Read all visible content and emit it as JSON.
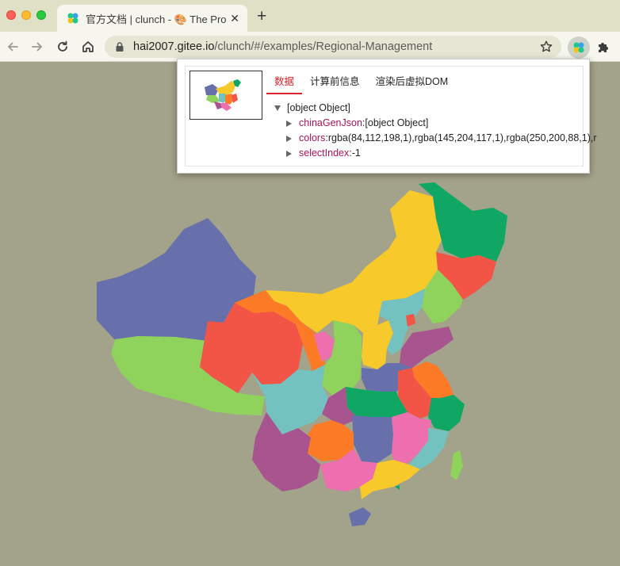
{
  "browser": {
    "tab": {
      "title": "官方文档 | clunch - 🎨 The Pro"
    },
    "url": {
      "host": "hai2007.gitee.io",
      "path": "/clunch/#/examples/Regional-Management"
    }
  },
  "devtools": {
    "tabs": [
      {
        "label": "数据"
      },
      {
        "label": "计算前信息"
      },
      {
        "label": "渲染后虚拟DOM"
      }
    ],
    "tree": {
      "root": "[object Object]",
      "items": [
        {
          "key": "chinaGenJson",
          "sep": ":",
          "value": "[object Object]"
        },
        {
          "key": "colors",
          "sep": ":",
          "value": "rgba(84,112,198,1),rgba(145,204,117,1),rgba(250,200,88,1),r"
        },
        {
          "key": "selectIndex",
          "sep": ":",
          "value": "-1"
        }
      ]
    }
  },
  "map_colors": {
    "blue": "#6870ac",
    "green_light": "#8fd35c",
    "yellow": "#f7c92a",
    "green": "#10a765",
    "red": "#f25445",
    "orange": "#fd7a27",
    "teal": "#73c2c0",
    "purple": "#a8548e",
    "pink": "#ee6fad"
  }
}
